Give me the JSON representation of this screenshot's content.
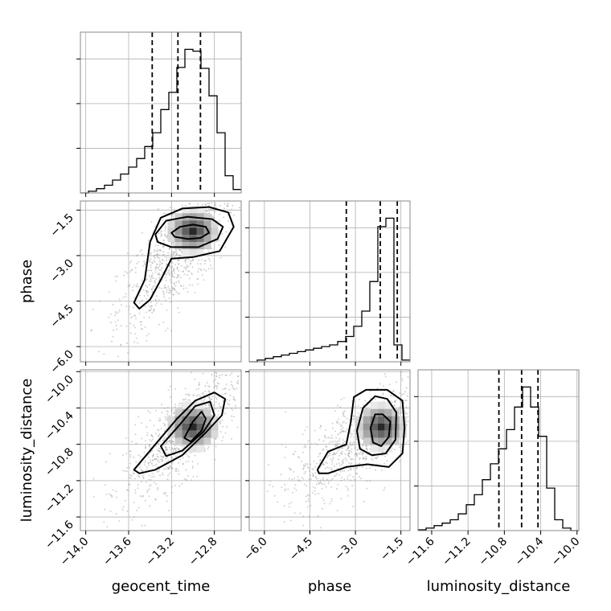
{
  "chart_data": {
    "type": "corner",
    "parameters": [
      "geocent_time",
      "phase",
      "luminosity_distance"
    ],
    "axis_labels": {
      "geocent_time": "geocent_time",
      "phase": "phase",
      "luminosity_distance": "luminosity_distance"
    },
    "ranges": {
      "geocent_time": [
        -14.05,
        -12.55
      ],
      "phase": [
        -6.5,
        -1.2
      ],
      "luminosity_distance": [
        -11.75,
        -9.98
      ]
    },
    "ticks": {
      "geocent_time": [
        -14.0,
        -13.6,
        -13.2,
        -12.8
      ],
      "phase": [
        -6.0,
        -4.5,
        -3.0,
        -1.5
      ],
      "luminosity_distance": [
        -11.6,
        -11.2,
        -10.8,
        -10.4,
        -10.0
      ]
    },
    "tick_labels": {
      "geocent_time": [
        "−14.0",
        "−13.6",
        "−13.2",
        "−12.8"
      ],
      "phase": [
        "−6.0",
        "−4.5",
        "−3.0",
        "−1.5"
      ],
      "luminosity_distance": [
        "−11.6",
        "−11.2",
        "−10.8",
        "−10.4",
        "−10.0"
      ]
    },
    "histograms": [
      {
        "parameter": "geocent_time",
        "bin_edges": [
          -14.05,
          -13.975,
          -13.9,
          -13.825,
          -13.75,
          -13.675,
          -13.6,
          -13.525,
          -13.45,
          -13.375,
          -13.3,
          -13.225,
          -13.15,
          -13.075,
          -13.0,
          -12.925,
          -12.85,
          -12.775,
          -12.7,
          -12.625,
          -12.55
        ],
        "counts": [
          0,
          2,
          5,
          9,
          15,
          22,
          30,
          40,
          54,
          70,
          97,
          117,
          146,
          167,
          165,
          145,
          113,
          70,
          20,
          4
        ],
        "quantiles": [
          -13.38,
          -13.14,
          -12.93
        ]
      },
      {
        "parameter": "phase",
        "bin_edges": [
          -6.5,
          -6.235,
          -5.97,
          -5.705,
          -5.44,
          -5.175,
          -4.91,
          -4.645,
          -4.38,
          -4.115,
          -3.85,
          -3.585,
          -3.32,
          -3.055,
          -2.79,
          -2.525,
          -2.26,
          -1.995,
          -1.73,
          -1.465,
          -1.2
        ],
        "counts": [
          0,
          2,
          4,
          6,
          8,
          10,
          12,
          14,
          16,
          18,
          20,
          24,
          30,
          42,
          60,
          95,
          160,
          170,
          20,
          2
        ],
        "quantiles": [
          -3.3,
          -2.18,
          -1.62
        ]
      },
      {
        "parameter": "luminosity_distance",
        "bin_edges": [
          -11.75,
          -11.6615,
          -11.573,
          -11.4845,
          -11.396,
          -11.3075,
          -11.219,
          -11.1305,
          -11.042,
          -10.9535,
          -10.865,
          -10.7765,
          -10.688,
          -10.5995,
          -10.511,
          -10.4225,
          -10.334,
          -10.2455,
          -10.157,
          -10.0685,
          -9.98
        ],
        "counts": [
          1,
          3,
          6,
          9,
          13,
          20,
          31,
          43,
          61,
          80,
          98,
          121,
          148,
          172,
          148,
          113,
          51,
          13,
          3,
          0
        ],
        "quantiles": [
          -10.86,
          -10.61,
          -10.43
        ]
      }
    ],
    "pairs": [
      {
        "x": "geocent_time",
        "y": "phase",
        "peak": [
          -13.0,
          -2.2
        ],
        "contours": [
          [
            [
              -13.2,
              -2.25
            ],
            [
              -13.12,
              -2.05
            ],
            [
              -13.0,
              -1.98
            ],
            [
              -12.88,
              -2.05
            ],
            [
              -12.85,
              -2.25
            ],
            [
              -12.93,
              -2.42
            ],
            [
              -13.05,
              -2.45
            ],
            [
              -13.17,
              -2.38
            ]
          ],
          [
            [
              -13.35,
              -2.3
            ],
            [
              -13.25,
              -1.85
            ],
            [
              -13.05,
              -1.72
            ],
            [
              -12.82,
              -1.8
            ],
            [
              -12.72,
              -2.05
            ],
            [
              -12.77,
              -2.45
            ],
            [
              -12.95,
              -2.72
            ],
            [
              -13.2,
              -2.72
            ],
            [
              -13.33,
              -2.55
            ]
          ],
          [
            [
              -13.55,
              -4.55
            ],
            [
              -13.45,
              -3.8
            ],
            [
              -13.4,
              -2.55
            ],
            [
              -13.3,
              -1.75
            ],
            [
              -13.1,
              -1.45
            ],
            [
              -12.85,
              -1.4
            ],
            [
              -12.67,
              -1.58
            ],
            [
              -12.62,
              -2.05
            ],
            [
              -12.75,
              -2.85
            ],
            [
              -13.0,
              -3.05
            ],
            [
              -13.2,
              -3.1
            ],
            [
              -13.3,
              -3.8
            ],
            [
              -13.4,
              -4.45
            ],
            [
              -13.5,
              -4.75
            ]
          ]
        ]
      },
      {
        "x": "geocent_time",
        "y": "luminosity_distance",
        "peak": [
          -13.0,
          -10.61
        ],
        "contours": [
          [
            [
              -13.08,
              -10.73
            ],
            [
              -13.0,
              -10.55
            ],
            [
              -12.92,
              -10.44
            ],
            [
              -12.88,
              -10.52
            ],
            [
              -12.92,
              -10.65
            ],
            [
              -13.02,
              -10.77
            ]
          ],
          [
            [
              -13.3,
              -10.82
            ],
            [
              -13.12,
              -10.58
            ],
            [
              -12.98,
              -10.38
            ],
            [
              -12.84,
              -10.33
            ],
            [
              -12.8,
              -10.48
            ],
            [
              -12.9,
              -10.66
            ],
            [
              -13.1,
              -10.87
            ],
            [
              -13.25,
              -10.93
            ]
          ],
          [
            [
              -13.55,
              -11.08
            ],
            [
              -13.35,
              -10.8
            ],
            [
              -13.15,
              -10.52
            ],
            [
              -12.98,
              -10.32
            ],
            [
              -12.8,
              -10.23
            ],
            [
              -12.7,
              -10.3
            ],
            [
              -12.73,
              -10.48
            ],
            [
              -12.88,
              -10.67
            ],
            [
              -13.1,
              -10.92
            ],
            [
              -13.35,
              -11.08
            ],
            [
              -13.5,
              -11.12
            ]
          ]
        ]
      },
      {
        "x": "phase",
        "y": "luminosity_distance",
        "peak": [
          -2.15,
          -10.61
        ],
        "contours": [
          [
            [
              -2.5,
              -10.62
            ],
            [
              -2.35,
              -10.47
            ],
            [
              -2.1,
              -10.47
            ],
            [
              -1.85,
              -10.55
            ],
            [
              -1.9,
              -10.72
            ],
            [
              -2.15,
              -10.82
            ],
            [
              -2.42,
              -10.78
            ]
          ],
          [
            [
              -2.95,
              -10.65
            ],
            [
              -2.75,
              -10.4
            ],
            [
              -2.35,
              -10.27
            ],
            [
              -1.95,
              -10.3
            ],
            [
              -1.65,
              -10.45
            ],
            [
              -1.68,
              -10.75
            ],
            [
              -2.0,
              -10.9
            ],
            [
              -2.45,
              -10.92
            ],
            [
              -2.85,
              -10.85
            ]
          ],
          [
            [
              -4.25,
              -11.08
            ],
            [
              -3.9,
              -10.88
            ],
            [
              -3.3,
              -10.8
            ],
            [
              -3.15,
              -10.55
            ],
            [
              -3.05,
              -10.28
            ],
            [
              -2.65,
              -10.2
            ],
            [
              -1.95,
              -10.2
            ],
            [
              -1.45,
              -10.32
            ],
            [
              -1.38,
              -10.62
            ],
            [
              -1.45,
              -10.9
            ],
            [
              -1.9,
              -11.05
            ],
            [
              -2.6,
              -11.02
            ],
            [
              -3.3,
              -11.05
            ],
            [
              -3.9,
              -11.12
            ],
            [
              -4.2,
              -11.12
            ]
          ]
        ]
      }
    ]
  }
}
